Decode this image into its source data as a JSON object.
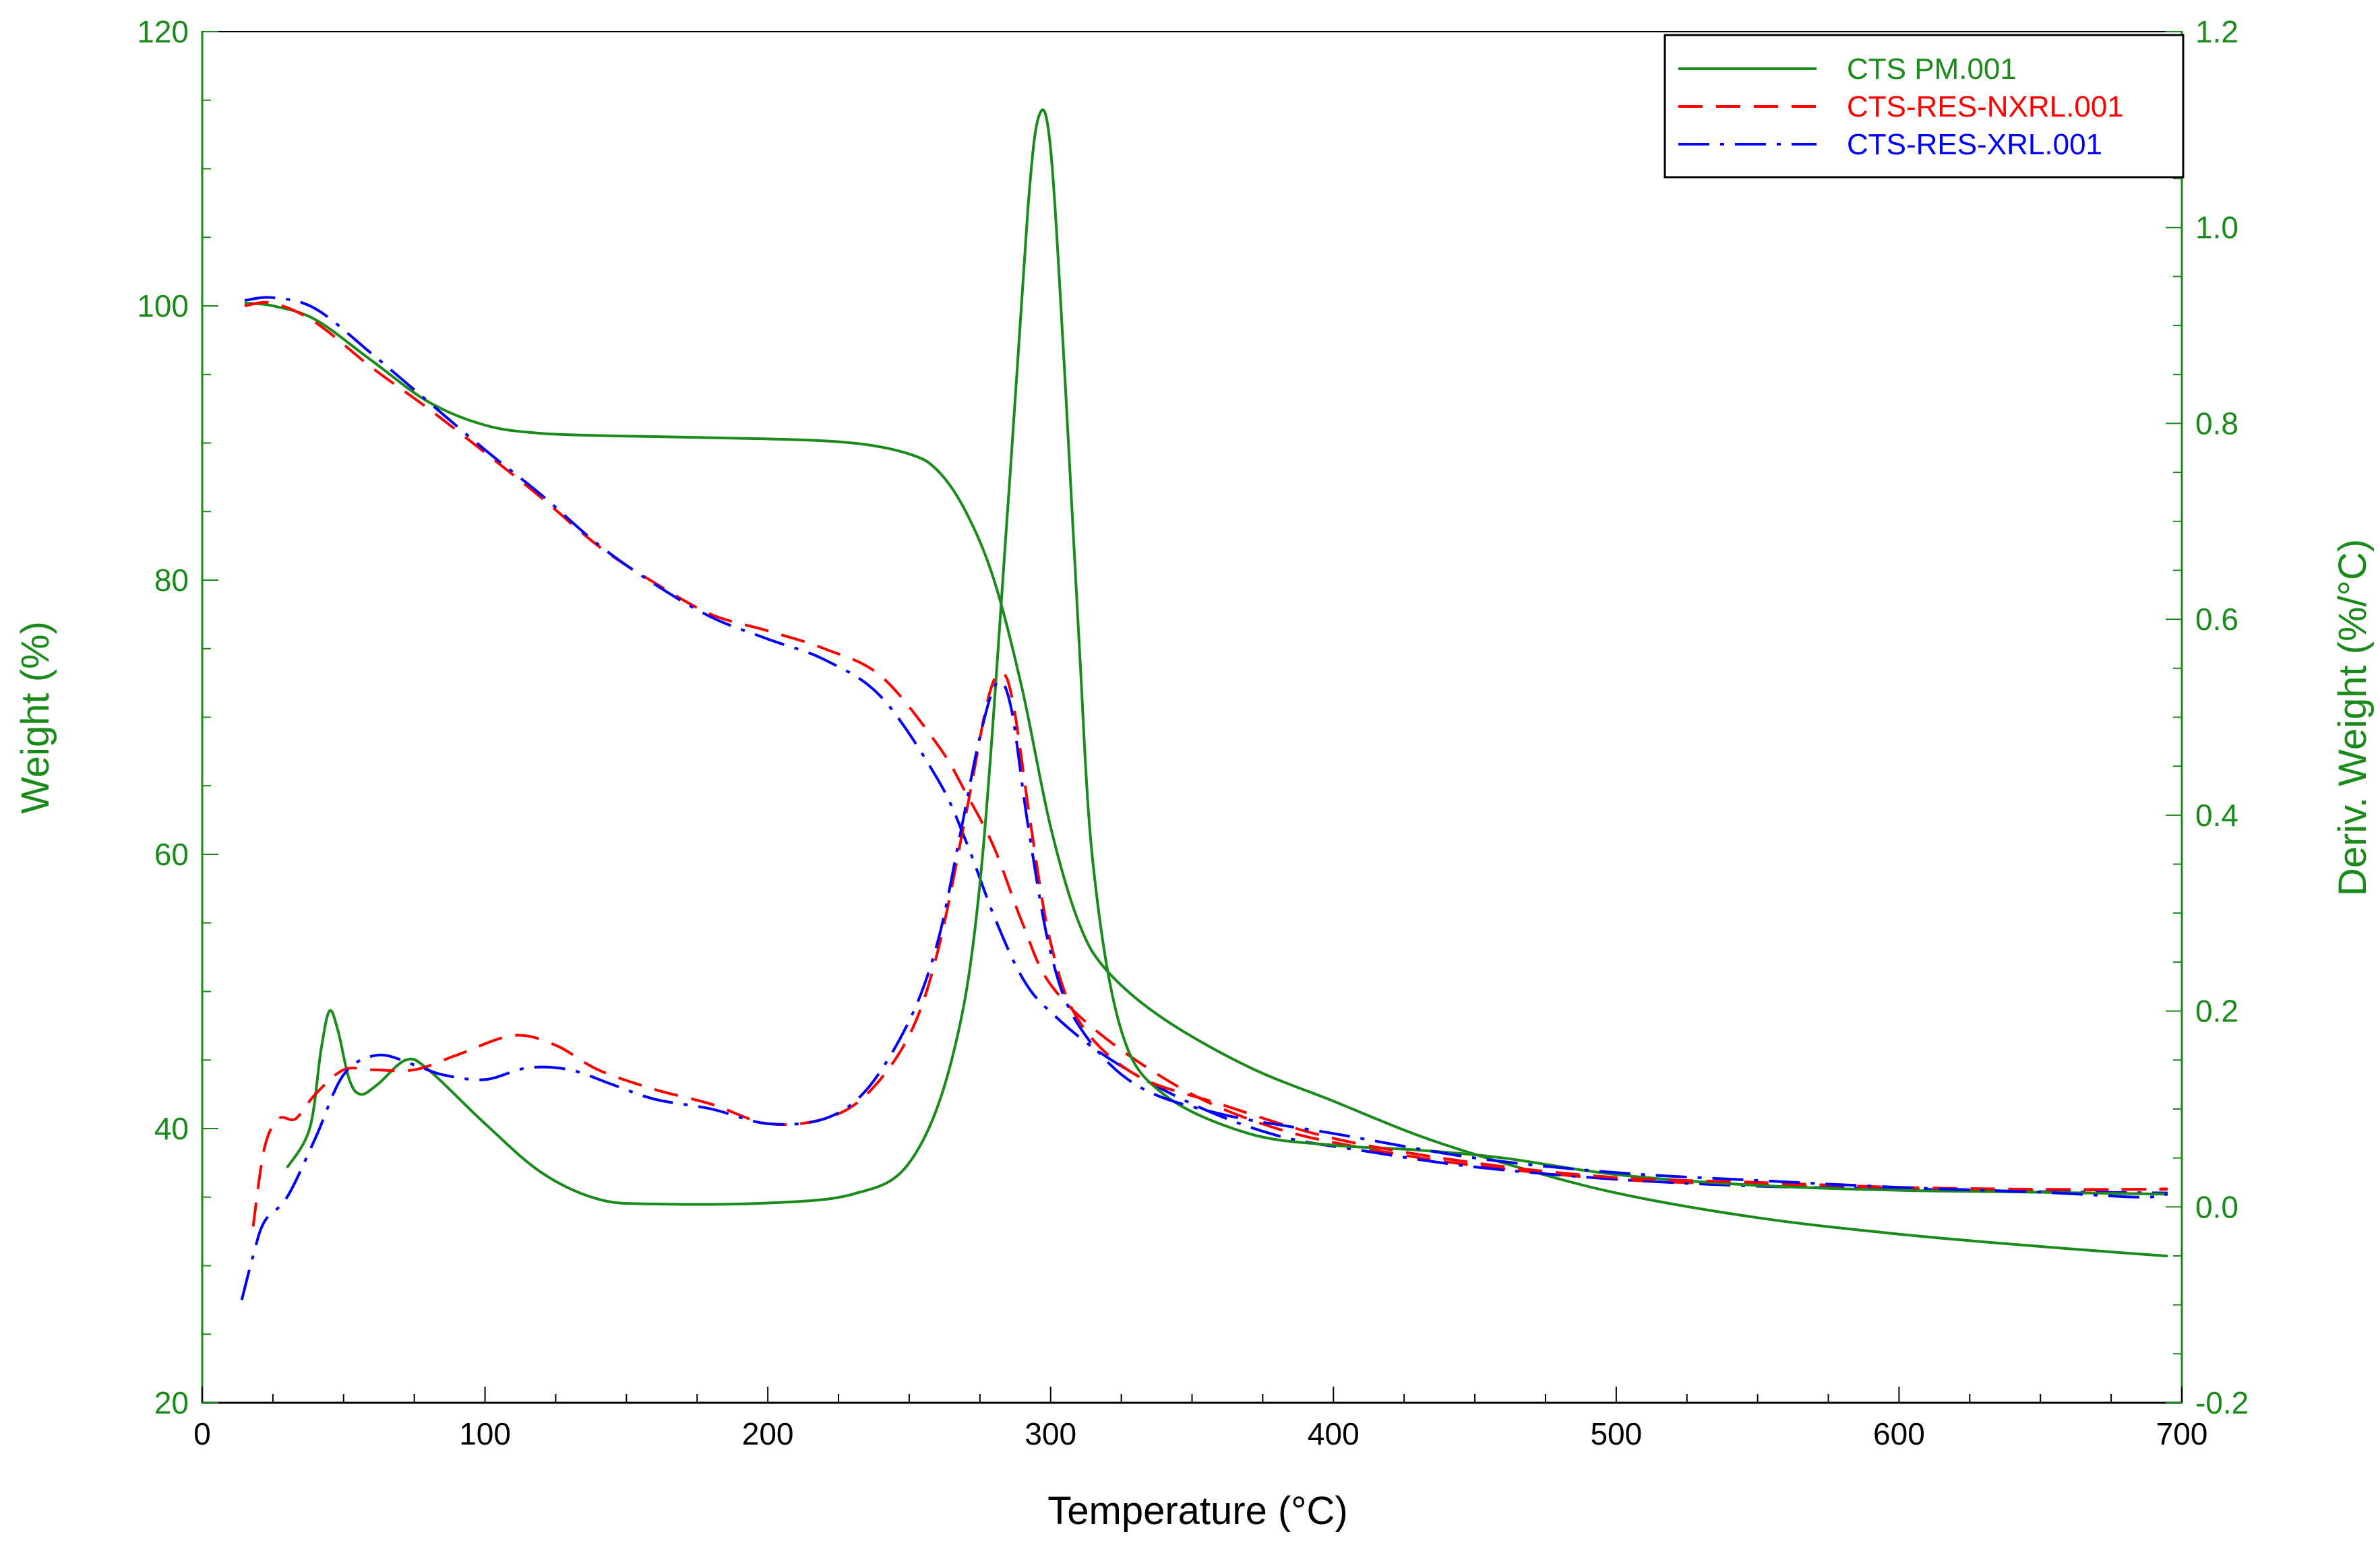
{
  "chart_data": {
    "type": "line",
    "xlabel": "Temperature (°C)",
    "ylabel": "Weight (%)",
    "y2label": "Deriv. Weight (%/°C)",
    "xlim": [
      0,
      700
    ],
    "ylim": [
      20,
      120
    ],
    "y2lim": [
      -0.2,
      1.2
    ],
    "x_ticks": [
      0,
      100,
      200,
      300,
      400,
      500,
      600,
      700
    ],
    "x_tick_labels": [
      "0",
      "100",
      "200",
      "300",
      "400",
      "500",
      "600",
      "700"
    ],
    "y_ticks": [
      20,
      40,
      60,
      80,
      100,
      120
    ],
    "y_tick_labels": [
      "20",
      "40",
      "60",
      "80",
      "100",
      "120"
    ],
    "y2_ticks": [
      -0.2,
      0.0,
      0.2,
      0.4,
      0.6,
      0.8,
      1.0,
      1.2
    ],
    "y2_tick_labels": [
      "-0.2",
      "0.0",
      "0.2",
      "0.4",
      "0.6",
      "0.8",
      "1.0",
      "1.2"
    ],
    "grid": false,
    "legend_position": "top-right",
    "axis_color": "#1a8a1a",
    "legend": [
      {
        "label": "CTS PM.001",
        "color": "#1a8a1a",
        "dash": "solid"
      },
      {
        "label": "CTS-RES-NXRL.001",
        "color": "#ff0000",
        "dash": "dashed"
      },
      {
        "label": "CTS-RES-XRL.001",
        "color": "#0000ff",
        "dash": "dashdot"
      }
    ],
    "series": [
      {
        "name": "CTS PM.001",
        "kind": "weight",
        "axis": "left",
        "color": "#1a8a1a",
        "dash": "solid",
        "points": [
          [
            15,
            100.2
          ],
          [
            25,
            100.0
          ],
          [
            40,
            99.0
          ],
          [
            60,
            96.0
          ],
          [
            80,
            93.0
          ],
          [
            100,
            91.3
          ],
          [
            120,
            90.7
          ],
          [
            150,
            90.5
          ],
          [
            200,
            90.3
          ],
          [
            230,
            90.0
          ],
          [
            250,
            89.2
          ],
          [
            260,
            88.0
          ],
          [
            270,
            85.0
          ],
          [
            280,
            80.0
          ],
          [
            290,
            72.0
          ],
          [
            300,
            62.0
          ],
          [
            310,
            55.0
          ],
          [
            320,
            51.5
          ],
          [
            340,
            48.0
          ],
          [
            370,
            44.5
          ],
          [
            400,
            42.0
          ],
          [
            430,
            39.5
          ],
          [
            460,
            37.5
          ],
          [
            500,
            35.3
          ],
          [
            550,
            33.5
          ],
          [
            600,
            32.3
          ],
          [
            650,
            31.4
          ],
          [
            695,
            30.7
          ]
        ]
      },
      {
        "name": "CTS-RES-NXRL.001",
        "kind": "weight",
        "axis": "left",
        "color": "#ff0000",
        "dash": "dashed",
        "points": [
          [
            15,
            100.0
          ],
          [
            25,
            100.2
          ],
          [
            40,
            98.8
          ],
          [
            60,
            95.5
          ],
          [
            80,
            92.5
          ],
          [
            100,
            89.3
          ],
          [
            120,
            86.0
          ],
          [
            140,
            82.5
          ],
          [
            160,
            79.8
          ],
          [
            180,
            77.5
          ],
          [
            200,
            76.3
          ],
          [
            220,
            75.0
          ],
          [
            240,
            73.0
          ],
          [
            260,
            68.0
          ],
          [
            270,
            64.5
          ],
          [
            280,
            60.5
          ],
          [
            290,
            55.0
          ],
          [
            300,
            50.5
          ],
          [
            320,
            46.5
          ],
          [
            350,
            42.5
          ],
          [
            380,
            40.0
          ],
          [
            410,
            38.6
          ],
          [
            450,
            37.3
          ],
          [
            500,
            36.3
          ],
          [
            550,
            35.9
          ],
          [
            600,
            35.6
          ],
          [
            650,
            35.5
          ],
          [
            695,
            35.6
          ]
        ]
      },
      {
        "name": "CTS-RES-XRL.001",
        "kind": "weight",
        "axis": "left",
        "color": "#0000ff",
        "dash": "dashdot",
        "points": [
          [
            15,
            100.4
          ],
          [
            25,
            100.6
          ],
          [
            40,
            99.8
          ],
          [
            60,
            96.5
          ],
          [
            80,
            93.0
          ],
          [
            100,
            89.5
          ],
          [
            120,
            86.2
          ],
          [
            140,
            82.6
          ],
          [
            160,
            79.7
          ],
          [
            180,
            77.3
          ],
          [
            200,
            75.7
          ],
          [
            220,
            74.2
          ],
          [
            240,
            71.5
          ],
          [
            260,
            65.5
          ],
          [
            270,
            61.0
          ],
          [
            280,
            55.5
          ],
          [
            290,
            51.0
          ],
          [
            300,
            48.5
          ],
          [
            320,
            45.2
          ],
          [
            350,
            41.8
          ],
          [
            380,
            39.5
          ],
          [
            410,
            38.4
          ],
          [
            450,
            37.2
          ],
          [
            500,
            36.3
          ],
          [
            550,
            35.8
          ],
          [
            600,
            35.6
          ],
          [
            650,
            35.4
          ],
          [
            695,
            35.3
          ]
        ]
      },
      {
        "name": "CTS PM.001",
        "kind": "derivative",
        "axis": "right",
        "color": "#1a8a1a",
        "dash": "solid",
        "points": [
          [
            30,
            0.04
          ],
          [
            38,
            0.08
          ],
          [
            42,
            0.16
          ],
          [
            45,
            0.2
          ],
          [
            48,
            0.18
          ],
          [
            52,
            0.13
          ],
          [
            56,
            0.115
          ],
          [
            62,
            0.125
          ],
          [
            72,
            0.15
          ],
          [
            80,
            0.14
          ],
          [
            100,
            0.085
          ],
          [
            120,
            0.035
          ],
          [
            140,
            0.008
          ],
          [
            160,
            0.003
          ],
          [
            200,
            0.004
          ],
          [
            230,
            0.013
          ],
          [
            250,
            0.045
          ],
          [
            265,
            0.15
          ],
          [
            275,
            0.33
          ],
          [
            285,
            0.72
          ],
          [
            292,
            1.02
          ],
          [
            296,
            1.115
          ],
          [
            300,
            1.08
          ],
          [
            305,
            0.85
          ],
          [
            310,
            0.58
          ],
          [
            315,
            0.35
          ],
          [
            325,
            0.18
          ],
          [
            340,
            0.115
          ],
          [
            370,
            0.075
          ],
          [
            400,
            0.063
          ],
          [
            430,
            0.058
          ],
          [
            460,
            0.05
          ],
          [
            500,
            0.033
          ],
          [
            550,
            0.022
          ],
          [
            600,
            0.017
          ],
          [
            650,
            0.015
          ],
          [
            695,
            0.013
          ]
        ]
      },
      {
        "name": "CTS-RES-NXRL.001",
        "kind": "derivative",
        "axis": "right",
        "color": "#ff0000",
        "dash": "dashed",
        "points": [
          [
            18,
            -0.02
          ],
          [
            22,
            0.06
          ],
          [
            27,
            0.09
          ],
          [
            33,
            0.09
          ],
          [
            40,
            0.115
          ],
          [
            50,
            0.14
          ],
          [
            60,
            0.14
          ],
          [
            75,
            0.14
          ],
          [
            90,
            0.155
          ],
          [
            110,
            0.175
          ],
          [
            125,
            0.165
          ],
          [
            140,
            0.14
          ],
          [
            160,
            0.12
          ],
          [
            180,
            0.105
          ],
          [
            200,
            0.085
          ],
          [
            220,
            0.09
          ],
          [
            235,
            0.115
          ],
          [
            250,
            0.175
          ],
          [
            260,
            0.26
          ],
          [
            270,
            0.4
          ],
          [
            278,
            0.52
          ],
          [
            283,
            0.545
          ],
          [
            287,
            0.51
          ],
          [
            293,
            0.39
          ],
          [
            300,
            0.27
          ],
          [
            310,
            0.19
          ],
          [
            330,
            0.135
          ],
          [
            360,
            0.105
          ],
          [
            400,
            0.07
          ],
          [
            450,
            0.045
          ],
          [
            500,
            0.03
          ],
          [
            550,
            0.025
          ],
          [
            600,
            0.02
          ],
          [
            650,
            0.018
          ],
          [
            695,
            0.018
          ]
        ]
      },
      {
        "name": "CTS-RES-XRL.001",
        "kind": "derivative",
        "axis": "right",
        "color": "#0000ff",
        "dash": "dashdot",
        "points": [
          [
            14,
            -0.095
          ],
          [
            18,
            -0.05
          ],
          [
            22,
            -0.015
          ],
          [
            30,
            0.01
          ],
          [
            40,
            0.07
          ],
          [
            50,
            0.135
          ],
          [
            62,
            0.155
          ],
          [
            75,
            0.145
          ],
          [
            85,
            0.135
          ],
          [
            100,
            0.13
          ],
          [
            115,
            0.142
          ],
          [
            130,
            0.14
          ],
          [
            145,
            0.125
          ],
          [
            160,
            0.11
          ],
          [
            180,
            0.1
          ],
          [
            200,
            0.085
          ],
          [
            220,
            0.09
          ],
          [
            235,
            0.12
          ],
          [
            250,
            0.19
          ],
          [
            260,
            0.27
          ],
          [
            268,
            0.38
          ],
          [
            275,
            0.48
          ],
          [
            281,
            0.535
          ],
          [
            286,
            0.51
          ],
          [
            292,
            0.39
          ],
          [
            300,
            0.26
          ],
          [
            310,
            0.185
          ],
          [
            330,
            0.125
          ],
          [
            360,
            0.095
          ],
          [
            400,
            0.075
          ],
          [
            450,
            0.05
          ],
          [
            500,
            0.035
          ],
          [
            550,
            0.027
          ],
          [
            600,
            0.02
          ],
          [
            650,
            0.015
          ],
          [
            685,
            0.01
          ],
          [
            695,
            0.013
          ]
        ]
      }
    ]
  }
}
